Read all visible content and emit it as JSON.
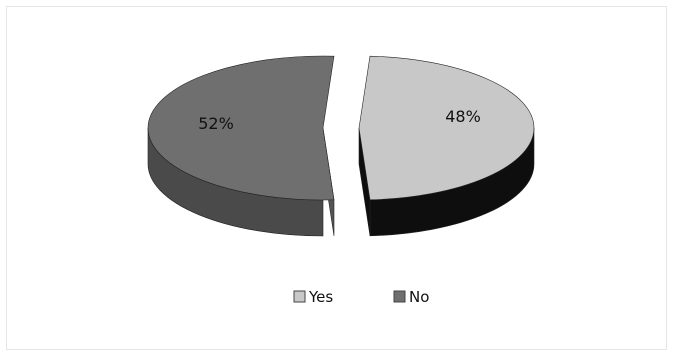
{
  "chart_data": {
    "type": "pie",
    "style": "3d-exploded",
    "categories": [
      "Yes",
      "No"
    ],
    "values": [
      48,
      52
    ],
    "unit": "%",
    "data_labels": [
      "48%",
      "52%"
    ],
    "colors": {
      "Yes": {
        "top": "#c8c8c8",
        "side": "#0e0e0e"
      },
      "No": {
        "top": "#6f6f6f",
        "side": "#4a4a4a"
      }
    },
    "legend": {
      "position": "bottom",
      "entries": [
        {
          "label": "Yes",
          "color": "#c8c8c8"
        },
        {
          "label": "No",
          "color": "#6f6f6f"
        }
      ]
    }
  }
}
